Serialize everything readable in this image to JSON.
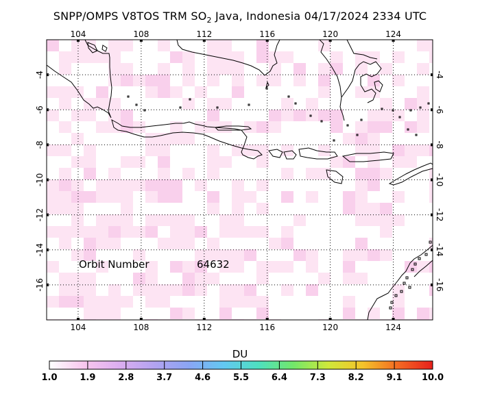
{
  "title": {
    "prefix": "SNPP/OMPS V8TOS TRM SO",
    "subscript": "2",
    "suffix": " Java, Indonesia 04/17/2024 2334 UTC"
  },
  "map": {
    "lon_range": [
      102,
      126.5
    ],
    "lat_range": [
      -18,
      -2
    ],
    "lon_ticks": [
      "104",
      "108",
      "112",
      "116",
      "120",
      "124"
    ],
    "lat_ticks": [
      "-4",
      "-6",
      "-8",
      "-10",
      "-12",
      "-14",
      "-16"
    ],
    "orbit_label": "Orbit Number",
    "orbit_number": "64632",
    "colors": {
      "coast": "#000000",
      "grid": "#000000",
      "pixel_light": "#fde4f3",
      "pixel_mid": "#f9d0ec"
    }
  },
  "colorbar": {
    "unit": "DU",
    "labels": [
      "1.0",
      "1.9",
      "2.8",
      "3.7",
      "4.6",
      "5.5",
      "6.4",
      "7.3",
      "8.2",
      "9.1",
      "10.0"
    ],
    "colors": [
      "#ffffff",
      "#f8c6ee",
      "#dcaef0",
      "#b3a3f0",
      "#8aa5f4",
      "#63c8f2",
      "#4ee0c0",
      "#72e86a",
      "#cfe83a",
      "#f5c32a",
      "#f36a22",
      "#e8201c"
    ]
  }
}
